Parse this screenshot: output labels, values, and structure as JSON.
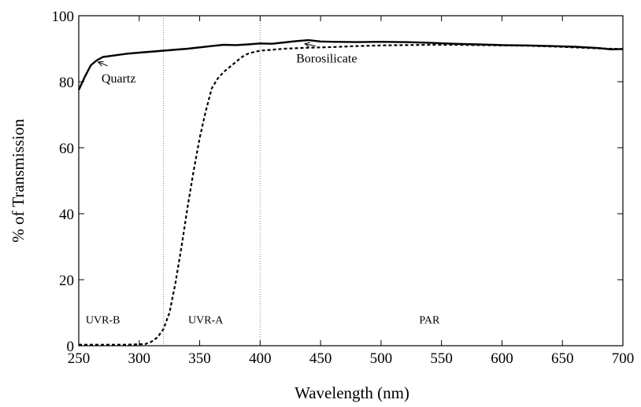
{
  "chart_data": {
    "type": "line",
    "xlabel": "Wavelength (nm)",
    "ylabel": "% of Transmission",
    "xlim": [
      250,
      700
    ],
    "ylim": [
      0,
      100
    ],
    "xticks": [
      250,
      300,
      350,
      400,
      450,
      500,
      550,
      600,
      650,
      700
    ],
    "yticks": [
      0,
      20,
      40,
      60,
      80,
      100
    ],
    "grid": false,
    "legend": "none",
    "series": [
      {
        "name": "Quartz",
        "style": "solid",
        "color": "#000000",
        "x": [
          250,
          255,
          260,
          265,
          270,
          280,
          290,
          300,
          320,
          340,
          360,
          370,
          380,
          390,
          400,
          410,
          420,
          430,
          440,
          450,
          460,
          480,
          500,
          520,
          540,
          560,
          580,
          600,
          620,
          640,
          660,
          680,
          690,
          700
        ],
        "y": [
          77.5,
          81.5,
          85,
          86.5,
          87.5,
          88,
          88.5,
          88.8,
          89.4,
          90,
          90.8,
          91.2,
          91.1,
          91.3,
          91.6,
          91.5,
          91.9,
          92.3,
          92.6,
          92.2,
          92.1,
          92,
          92.1,
          92,
          91.8,
          91.5,
          91.3,
          91.1,
          91,
          90.8,
          90.6,
          90.2,
          89.8,
          89.9
        ]
      },
      {
        "name": "Borosilicate",
        "style": "dashed",
        "color": "#000000",
        "x": [
          250,
          270,
          290,
          305,
          310,
          315,
          320,
          325,
          330,
          335,
          340,
          345,
          350,
          355,
          360,
          365,
          370,
          375,
          380,
          385,
          390,
          395,
          400,
          410,
          420,
          440,
          460,
          480,
          500,
          520,
          540,
          560,
          580,
          600,
          620,
          640,
          660,
          680,
          700
        ],
        "y": [
          0.3,
          0.3,
          0.3,
          0.5,
          1.2,
          2.5,
          5,
          10,
          19,
          30,
          42,
          53,
          63,
          71,
          78,
          81,
          83,
          84.5,
          86,
          87.5,
          88.5,
          89,
          89.4,
          89.7,
          90,
          90.3,
          90.5,
          90.8,
          91,
          91.1,
          91.2,
          91.2,
          91.1,
          91,
          90.9,
          90.7,
          90.4,
          90.1,
          89.9
        ]
      }
    ],
    "regions": [
      {
        "label": "UVR-B",
        "label_x": 270,
        "label_y": 8
      },
      {
        "label": "UVR-A",
        "label_x": 355,
        "label_y": 8
      },
      {
        "label": "PAR",
        "label_x": 540,
        "label_y": 8
      }
    ],
    "dividers": [
      320,
      400
    ],
    "annotations": [
      {
        "text": "Quartz",
        "text_x": 283,
        "text_y": 81,
        "point_x": 266,
        "point_y": 86
      },
      {
        "text": "Borosilicate",
        "text_x": 455,
        "text_y": 87,
        "point_x": 437,
        "point_y": 91.5
      }
    ]
  }
}
